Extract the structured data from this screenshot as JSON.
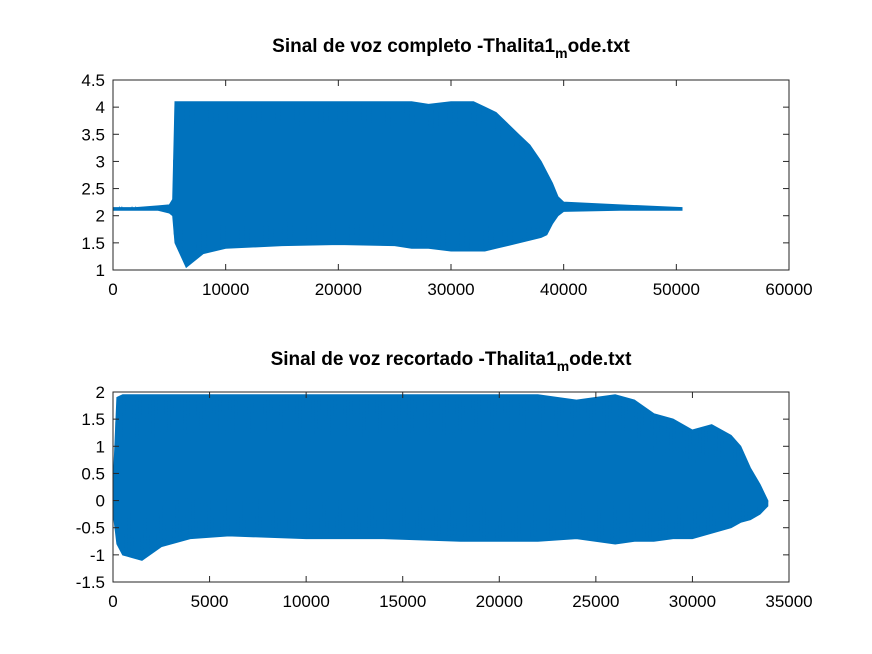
{
  "chart_data": [
    {
      "type": "line",
      "title": {
        "main": "Sinal de voz completo -Thalita1",
        "sub": "m",
        "rest": "ode.txt"
      },
      "xlabel": "",
      "ylabel": "",
      "xlim": [
        0,
        60000
      ],
      "ylim": [
        1,
        4.5
      ],
      "xticks": [
        0,
        10000,
        20000,
        30000,
        40000,
        50000,
        60000
      ],
      "xtick_labels": [
        "0",
        "10000",
        "20000",
        "30000",
        "40000",
        "50000",
        "60000"
      ],
      "yticks": [
        1,
        1.5,
        2,
        2.5,
        3,
        3.5,
        4,
        4.5
      ],
      "ytick_labels": [
        "1",
        "1.5",
        "2",
        "2.5",
        "3",
        "3.5",
        "4",
        "4.5"
      ],
      "grid": false,
      "color": "#0072bd",
      "series": [
        {
          "x": [
            0,
            2000,
            4000,
            5000,
            5300,
            5500,
            6500,
            8000,
            10000,
            15000,
            20000,
            25000,
            26500,
            28000,
            30000,
            32000,
            33000,
            34000,
            35000,
            36000,
            37000,
            38000,
            38500,
            39000,
            39500,
            40000,
            45000,
            50500
          ],
          "upper": [
            2.15,
            2.15,
            2.18,
            2.2,
            2.3,
            4.1,
            4.1,
            4.1,
            4.1,
            4.1,
            4.1,
            4.1,
            4.1,
            4.05,
            4.1,
            4.1,
            4.0,
            3.9,
            3.7,
            3.5,
            3.3,
            3.0,
            2.8,
            2.6,
            2.35,
            2.25,
            2.2,
            2.15
          ],
          "lower": [
            2.1,
            2.1,
            2.1,
            2.05,
            2.0,
            1.5,
            1.05,
            1.3,
            1.4,
            1.45,
            1.47,
            1.45,
            1.4,
            1.4,
            1.35,
            1.35,
            1.35,
            1.4,
            1.45,
            1.5,
            1.55,
            1.6,
            1.65,
            1.85,
            2.0,
            2.08,
            2.1,
            2.1
          ]
        }
      ]
    },
    {
      "type": "line",
      "title": {
        "main": "Sinal de voz recortado -Thalita1",
        "sub": "m",
        "rest": "ode.txt"
      },
      "xlabel": "",
      "ylabel": "",
      "xlim": [
        0,
        35000
      ],
      "ylim": [
        -1.5,
        2
      ],
      "xticks": [
        0,
        5000,
        10000,
        15000,
        20000,
        25000,
        30000,
        35000
      ],
      "xtick_labels": [
        "0",
        "5000",
        "10000",
        "15000",
        "20000",
        "25000",
        "30000",
        "35000"
      ],
      "yticks": [
        -1.5,
        -1,
        -0.5,
        0,
        0.5,
        1,
        1.5,
        2
      ],
      "ytick_labels": [
        "-1.5",
        "-1",
        "-0.5",
        "0",
        "0.5",
        "1",
        "1.5",
        "2"
      ],
      "grid": false,
      "color": "#0072bd",
      "series": [
        {
          "x": [
            0,
            200,
            500,
            1000,
            1500,
            2500,
            4000,
            6000,
            10000,
            14000,
            18000,
            22000,
            24000,
            26000,
            27000,
            28000,
            29000,
            30000,
            31000,
            32000,
            32500,
            33000,
            33500,
            33900
          ],
          "upper": [
            0.2,
            1.9,
            1.95,
            1.95,
            1.95,
            1.95,
            1.95,
            1.95,
            1.95,
            1.95,
            1.95,
            1.95,
            1.85,
            1.95,
            1.85,
            1.6,
            1.5,
            1.3,
            1.4,
            1.2,
            1.0,
            0.6,
            0.3,
            0.0
          ],
          "lower": [
            -0.2,
            -0.8,
            -1.0,
            -1.05,
            -1.1,
            -0.85,
            -0.7,
            -0.65,
            -0.7,
            -0.7,
            -0.75,
            -0.75,
            -0.7,
            -0.8,
            -0.75,
            -0.75,
            -0.7,
            -0.7,
            -0.6,
            -0.5,
            -0.4,
            -0.35,
            -0.25,
            -0.1
          ]
        }
      ]
    }
  ]
}
